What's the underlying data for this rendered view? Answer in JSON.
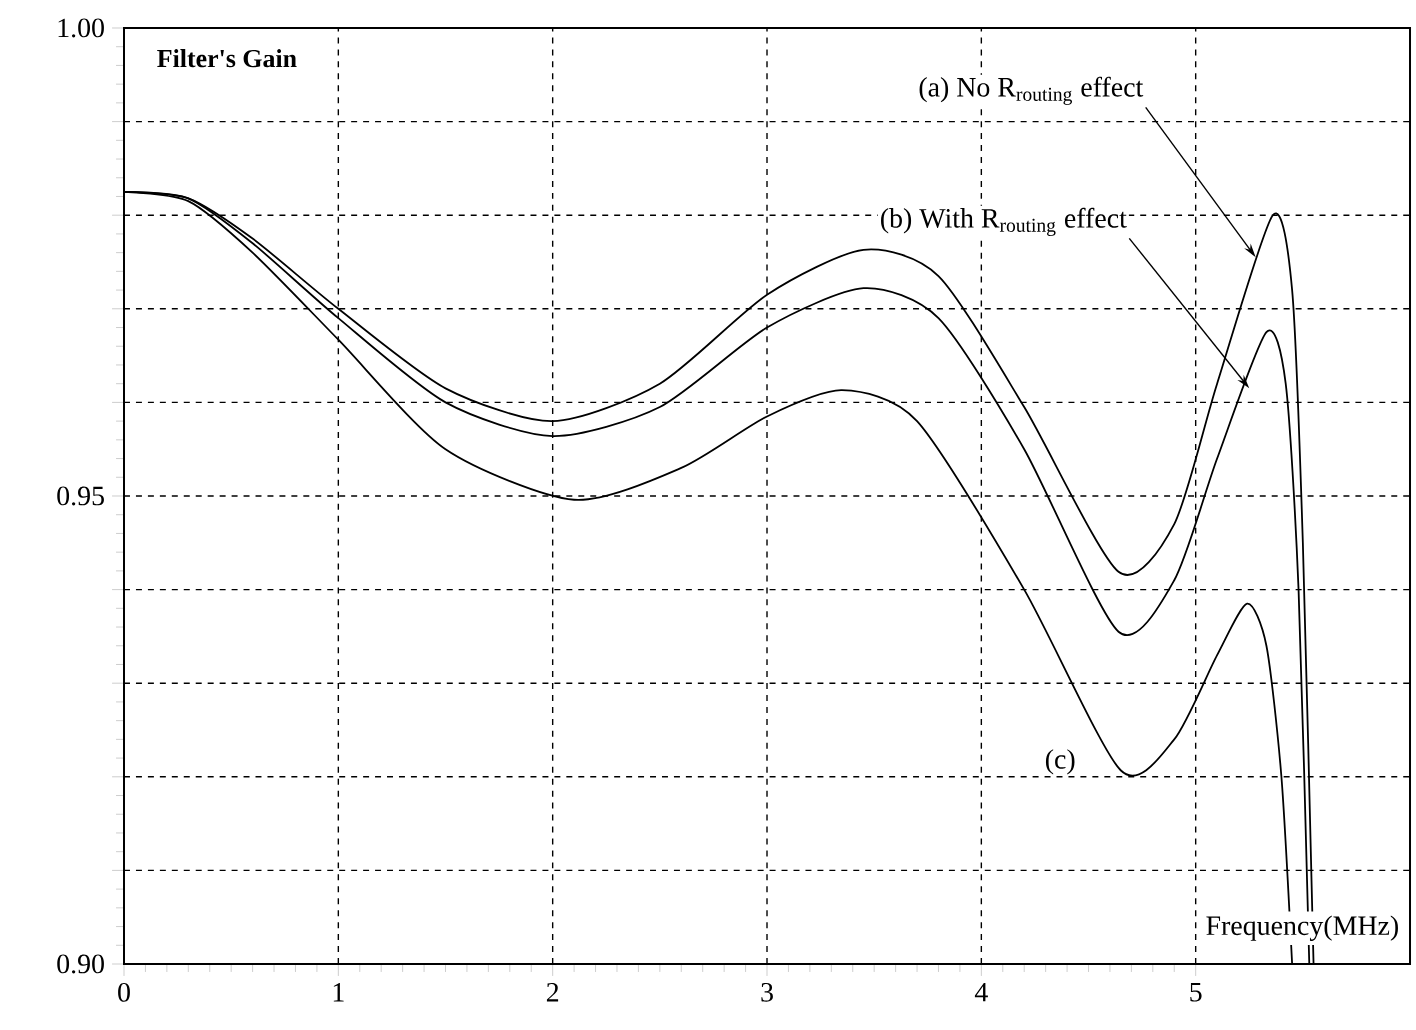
{
  "chart_data": {
    "type": "line",
    "xlabel": "Frequency(MHz)",
    "ylabel": "Filter's Gain",
    "xlim": [
      0,
      6
    ],
    "xticks": [
      0,
      1,
      2,
      3,
      4,
      5
    ],
    "ylim": [
      0.9,
      1.0
    ],
    "yticks": [
      {
        "value": 0.9,
        "label": "0.90"
      },
      {
        "value": 0.91,
        "label": null
      },
      {
        "value": 0.92,
        "label": null
      },
      {
        "value": 0.93,
        "label": null
      },
      {
        "value": 0.94,
        "label": null
      },
      0.95,
      {
        "value": 0.96,
        "label": null
      },
      {
        "value": 0.97,
        "label": null
      },
      {
        "value": 0.98,
        "label": null
      },
      {
        "value": 0.99,
        "label": null
      },
      {
        "value": 1.0,
        "label": "1.00"
      }
    ],
    "grid": true,
    "series": [
      {
        "color": "#000000",
        "x": [
          0,
          0.3,
          0.6,
          1,
          1.5,
          2,
          2.5,
          3,
          3.45,
          3.8,
          4.2,
          4.64,
          4.9,
          5.1,
          5.36,
          5.45,
          5.5,
          5.55
        ],
        "values": [
          0.9825,
          0.9818,
          0.9775,
          0.97,
          0.9615,
          0.958,
          0.962,
          0.9715,
          0.9763,
          0.9735,
          0.9595,
          0.9419,
          0.947,
          0.962,
          0.98,
          0.972,
          0.945,
          0.9
        ]
      },
      {
        "color": "#000000",
        "x": [
          0,
          0.3,
          0.6,
          1,
          1.5,
          2,
          2.5,
          3,
          3.45,
          3.8,
          4.2,
          4.64,
          4.9,
          5.1,
          5.33,
          5.42,
          5.48,
          5.53
        ],
        "values": [
          0.9825,
          0.9818,
          0.977,
          0.969,
          0.96,
          0.9564,
          0.9595,
          0.968,
          0.9722,
          0.969,
          0.955,
          0.9355,
          0.941,
          0.954,
          0.9675,
          0.962,
          0.94,
          0.9
        ]
      },
      {
        "color": "#000000",
        "x": [
          0,
          0.3,
          0.6,
          1,
          1.5,
          2.1,
          2.6,
          3,
          3.35,
          3.7,
          4.2,
          4.65,
          4.9,
          5.1,
          5.24,
          5.33,
          5.4,
          5.45
        ],
        "values": [
          0.9825,
          0.9815,
          0.976,
          0.9667,
          0.955,
          0.9496,
          0.953,
          0.9585,
          0.9613,
          0.958,
          0.94,
          0.9207,
          0.924,
          0.933,
          0.9385,
          0.934,
          0.92,
          0.9
        ]
      }
    ],
    "annotations": [
      {
        "text": "(a) No R$_{routing}$ effect",
        "x": 5.28,
        "y": 0.9755
      },
      {
        "text": "(b) With R$_{routing}$ effect",
        "x": 5.25,
        "y": 0.9615
      },
      "(c)"
    ]
  }
}
